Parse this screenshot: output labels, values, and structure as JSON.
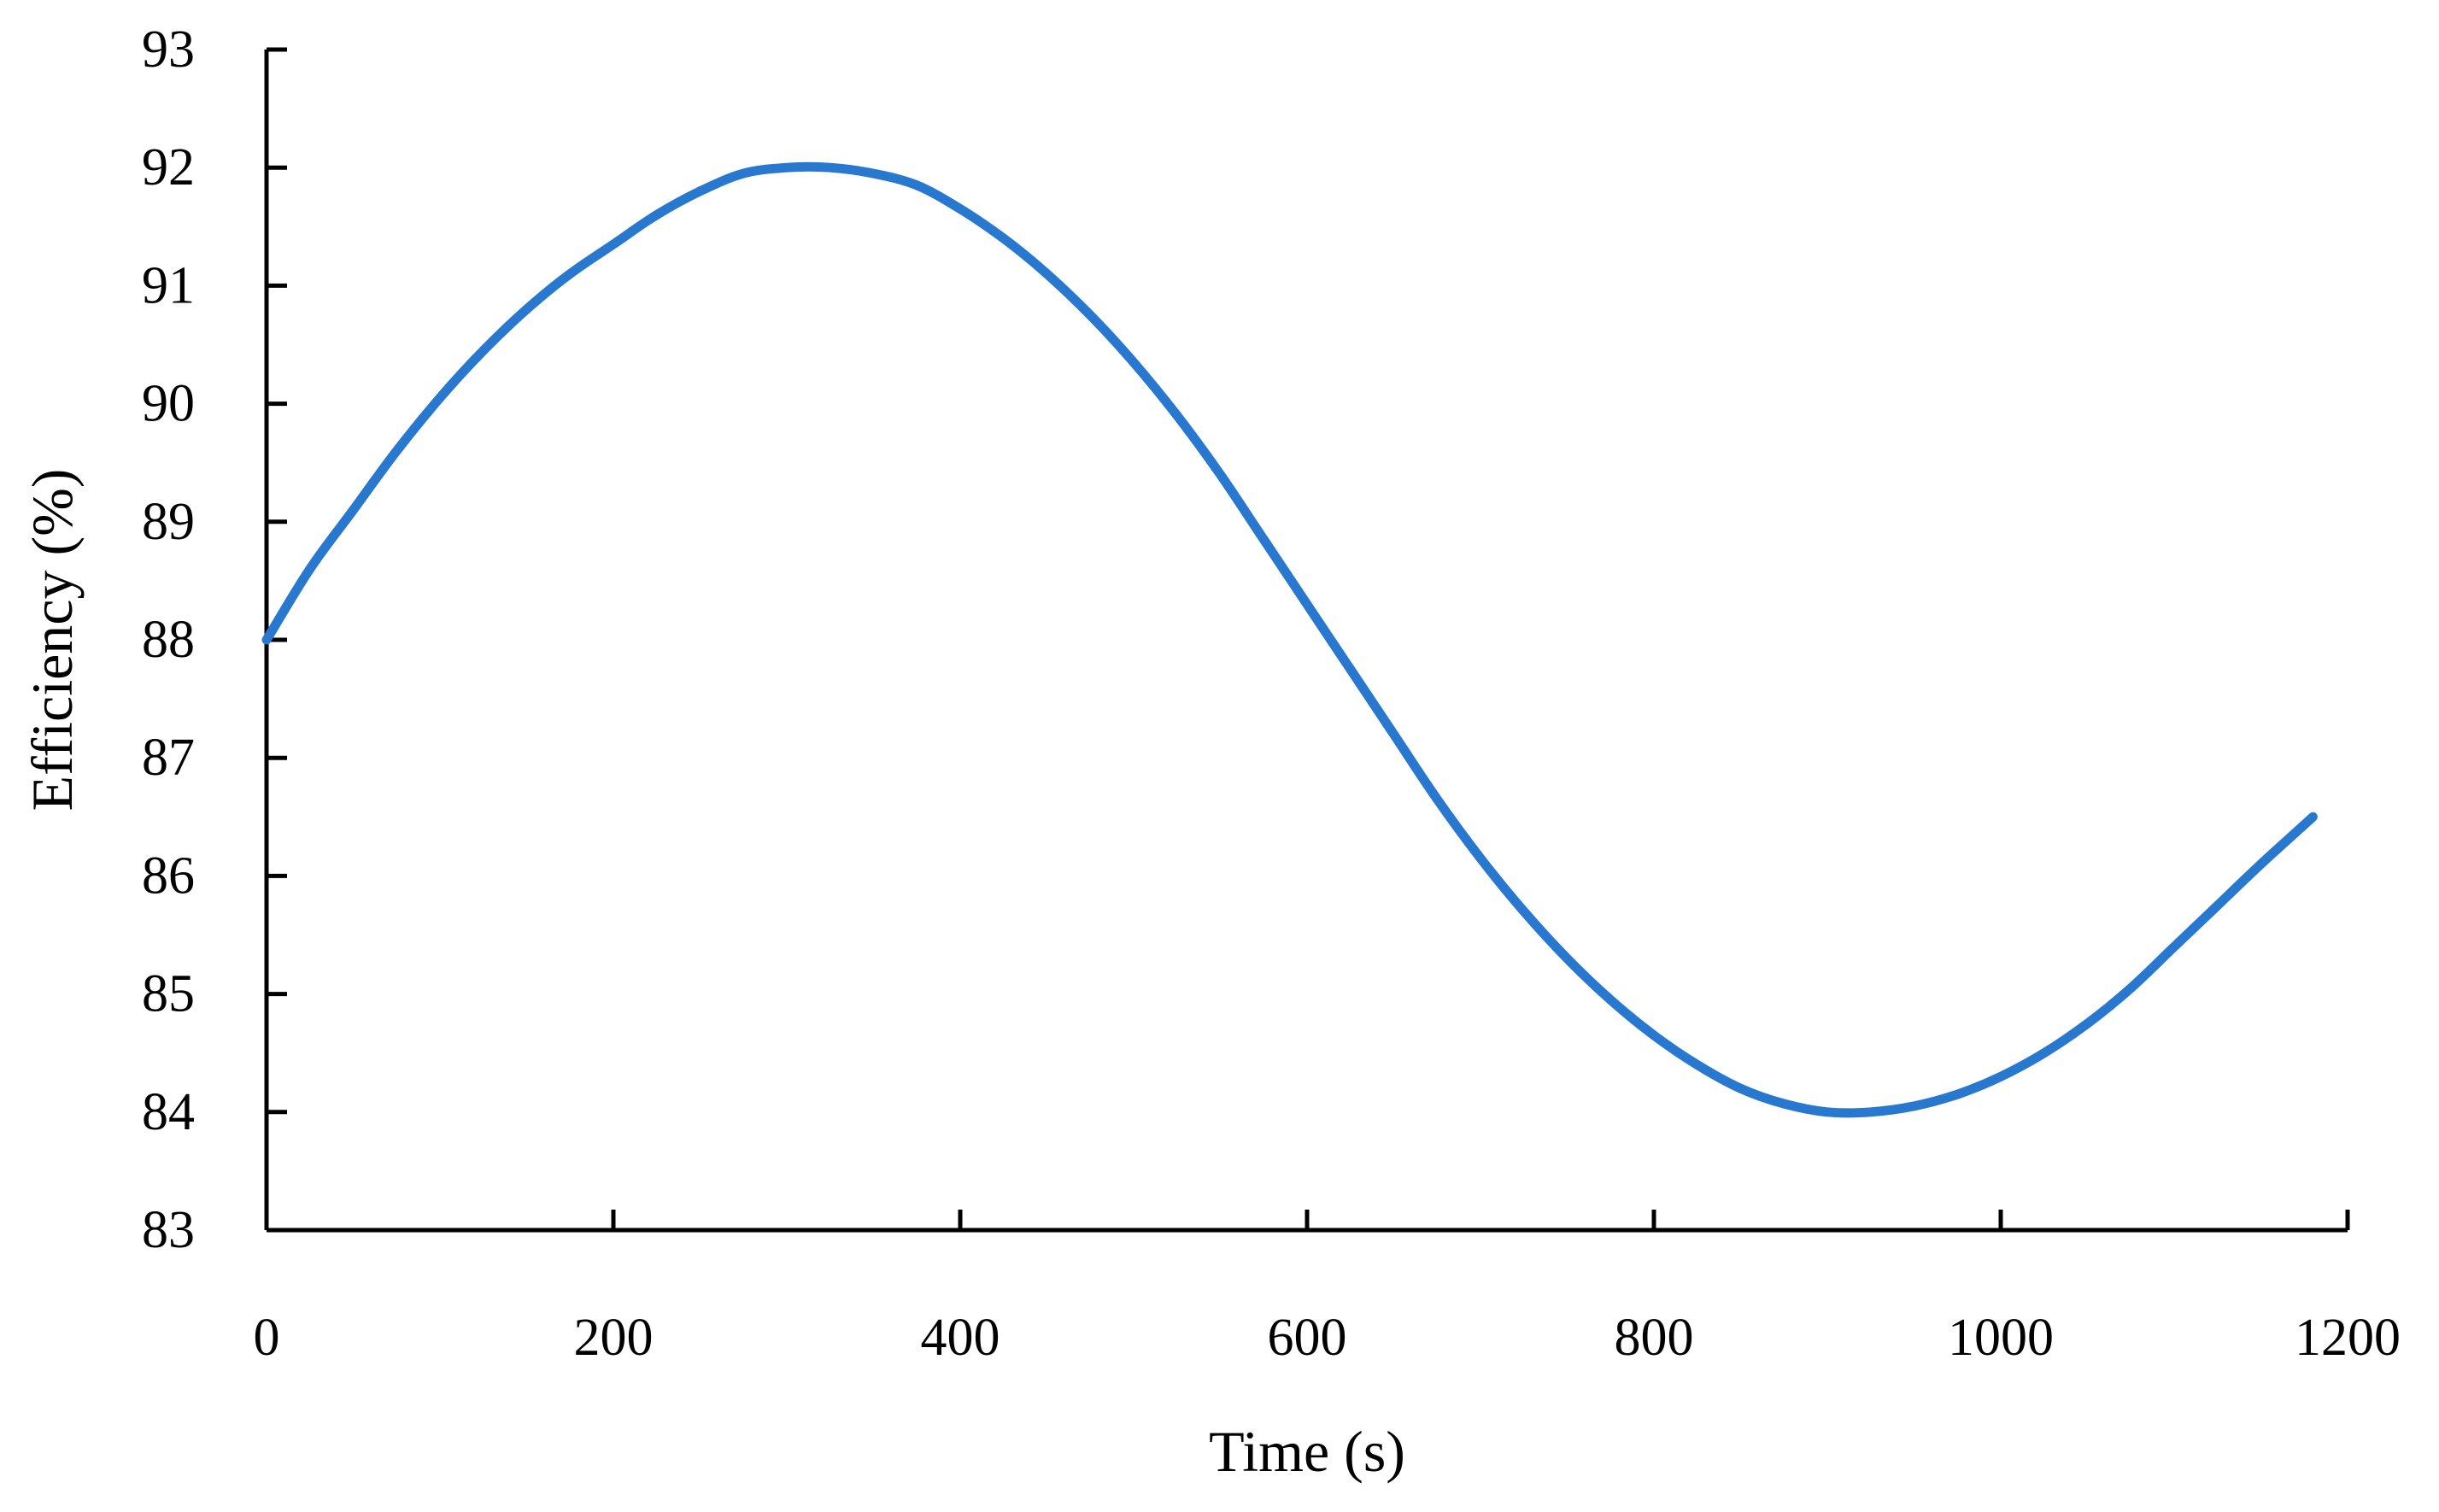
{
  "chart_data": {
    "type": "line",
    "title": "",
    "xlabel": "Time (s)",
    "ylabel": "Efficiency (%)",
    "xlim": [
      0,
      1200
    ],
    "ylim": [
      83,
      93
    ],
    "xticks": [
      "0",
      "200",
      "400",
      "600",
      "800",
      "1000",
      "1200"
    ],
    "yticks": [
      "83",
      "84",
      "85",
      "86",
      "87",
      "88",
      "89",
      "90",
      "91",
      "92",
      "93"
    ],
    "grid": false,
    "legend": "none",
    "series": [
      {
        "name": "Efficiency",
        "color": "#2878d0",
        "x": [
          0,
          25,
          50,
          75,
          100,
          125,
          150,
          175,
          200,
          225,
          250,
          275,
          300,
          325,
          350,
          375,
          400,
          425,
          450,
          475,
          500,
          525,
          550,
          575,
          600,
          625,
          650,
          675,
          700,
          725,
          750,
          775,
          800,
          825,
          850,
          875,
          900,
          925,
          950,
          975,
          1000,
          1025,
          1050,
          1075,
          1100,
          1125,
          1150,
          1180
        ],
        "y": [
          88.0,
          88.6,
          89.1,
          89.6,
          90.05,
          90.45,
          90.8,
          91.1,
          91.35,
          91.6,
          91.8,
          91.95,
          92.0,
          92.0,
          91.95,
          91.85,
          91.65,
          91.4,
          91.1,
          90.75,
          90.35,
          89.9,
          89.4,
          88.85,
          88.3,
          87.75,
          87.2,
          86.65,
          86.15,
          85.7,
          85.3,
          84.95,
          84.65,
          84.4,
          84.2,
          84.07,
          84.0,
          84.0,
          84.05,
          84.15,
          84.3,
          84.5,
          84.75,
          85.05,
          85.4,
          85.75,
          86.1,
          86.5
        ]
      }
    ]
  }
}
